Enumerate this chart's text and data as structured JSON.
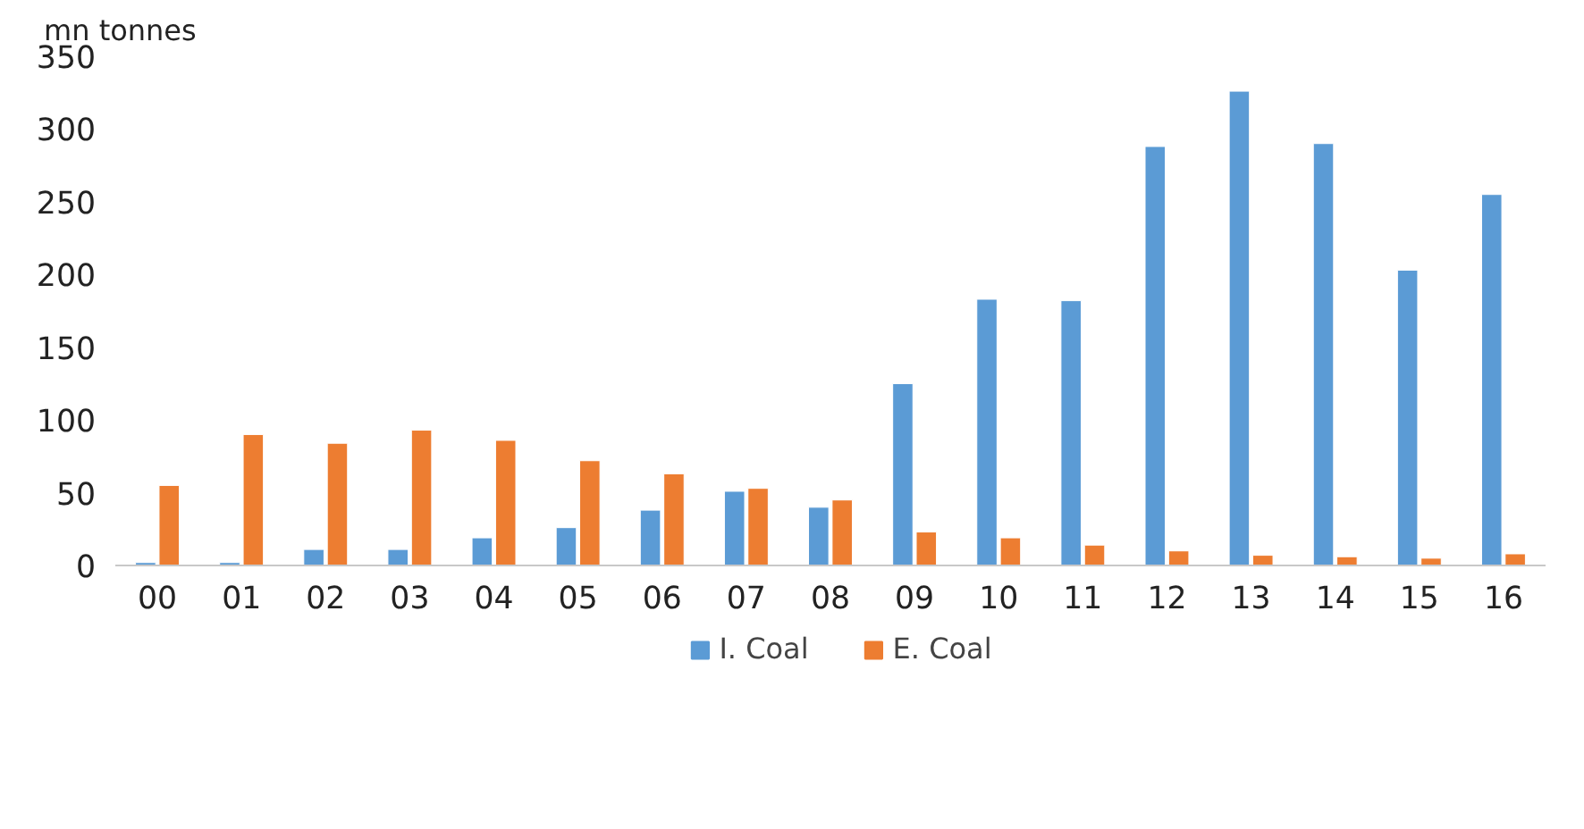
{
  "chart_data": {
    "type": "bar",
    "ylabel": "mn tonnes",
    "categories": [
      "00",
      "01",
      "02",
      "03",
      "04",
      "05",
      "06",
      "07",
      "08",
      "09",
      "10",
      "11",
      "12",
      "13",
      "14",
      "15",
      "16"
    ],
    "series": [
      {
        "name": "I. Coal",
        "color": "#5b9bd5",
        "values": [
          2,
          2,
          11,
          11,
          19,
          26,
          38,
          51,
          40,
          125,
          183,
          182,
          288,
          326,
          290,
          203,
          255
        ]
      },
      {
        "name": "E. Coal",
        "color": "#ed7d31",
        "values": [
          55,
          90,
          84,
          93,
          86,
          72,
          63,
          53,
          45,
          23,
          19,
          14,
          10,
          7,
          6,
          5,
          8
        ]
      }
    ],
    "ylim": [
      0,
      350
    ],
    "yticks": [
      0,
      50,
      100,
      150,
      200,
      250,
      300,
      350
    ],
    "grid": false,
    "legend": "bottom"
  }
}
